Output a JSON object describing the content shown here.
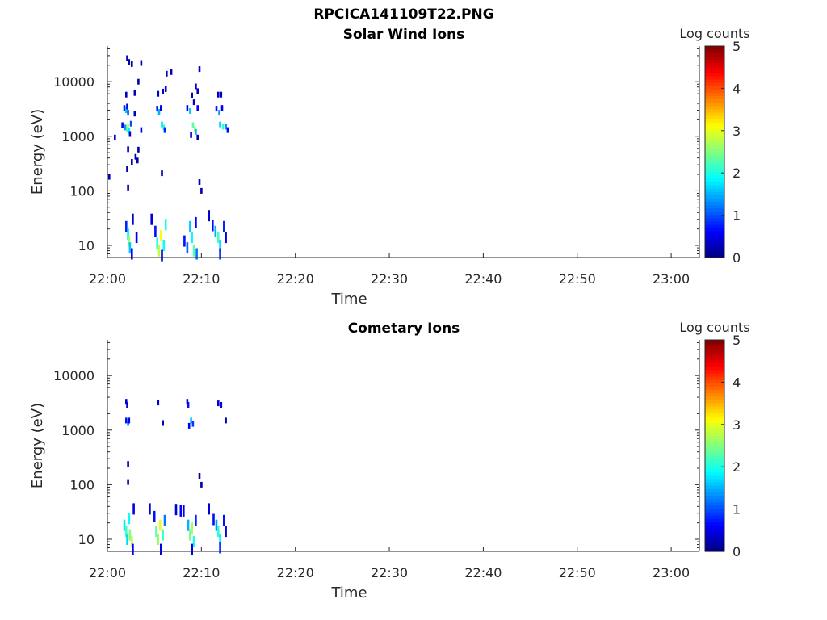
{
  "figure_title": "RPCICA141109T22.PNG",
  "chart_data": [
    {
      "type": "heatmap",
      "title": "Solar Wind Ions",
      "xlabel": "Time",
      "ylabel": "Energy (eV)",
      "x_ticks": [
        "22:00",
        "22:10",
        "22:20",
        "22:30",
        "22:40",
        "22:50",
        "23:00"
      ],
      "xlim": [
        "22:00",
        "23:03"
      ],
      "y_scale": "log",
      "y_ticks": [
        "10",
        "100",
        "1000",
        "10000"
      ],
      "ylim": [
        6,
        45000
      ],
      "colorbar": {
        "label": "Log counts",
        "ticks": [
          "0",
          "1",
          "2",
          "3",
          "4",
          "5"
        ],
        "range": [
          0,
          5
        ],
        "colormap": "jet"
      },
      "cells": [
        [
          "22:00.2",
          180,
          0.3
        ],
        [
          "22:00.8",
          950,
          0.3
        ],
        [
          "22:01.6",
          1600,
          0.5
        ],
        [
          "22:01.9",
          1450,
          1.4
        ],
        [
          "22:02.1",
          1350,
          2.2
        ],
        [
          "22:02.2",
          1500,
          2.8
        ],
        [
          "22:02.3",
          1250,
          1.8
        ],
        [
          "22:02.5",
          1700,
          1.0
        ],
        [
          "22:02.4",
          1100,
          0.4
        ],
        [
          "22:01.8",
          3300,
          0.8
        ],
        [
          "22:02.0",
          3000,
          1.6
        ],
        [
          "22:02.2",
          2700,
          1.1
        ],
        [
          "22:02.1",
          3500,
          0.5
        ],
        [
          "22:02.0",
          5800,
          0.3
        ],
        [
          "22:02.1",
          27000,
          0.3
        ],
        [
          "22:02.3",
          23000,
          0.2
        ],
        [
          "22:02.6",
          21000,
          0.2
        ],
        [
          "22:03.6",
          22000,
          0.2
        ],
        [
          "22:03.3",
          10000,
          0.2
        ],
        [
          "22:02.2",
          580,
          0.2
        ],
        [
          "22:02.1",
          250,
          0.2
        ],
        [
          "22:02.6",
          340,
          0.2
        ],
        [
          "22:02.2",
          115,
          0.2
        ],
        [
          "22:03.0",
          420,
          0.2
        ],
        [
          "22:03.3",
          570,
          0.2
        ],
        [
          "22:03.2",
          360,
          0.2
        ],
        [
          "22:02.9",
          2600,
          0.3
        ],
        [
          "22:02.9",
          6200,
          0.3
        ],
        [
          "22:03.6",
          1300,
          0.5
        ],
        [
          "22:05.3",
          3200,
          0.7
        ],
        [
          "22:05.5",
          2800,
          1.5
        ],
        [
          "22:05.7",
          3300,
          0.6
        ],
        [
          "22:05.8",
          1650,
          1.7
        ],
        [
          "22:06.0",
          1450,
          2.1
        ],
        [
          "22:06.1",
          1300,
          0.8
        ],
        [
          "22:05.4",
          6000,
          0.3
        ],
        [
          "22:05.9",
          6600,
          0.3
        ],
        [
          "22:06.2",
          7300,
          0.3
        ],
        [
          "22:06.3",
          14000,
          0.3
        ],
        [
          "22:06.8",
          15000,
          0.3
        ],
        [
          "22:05.8",
          210,
          0.2
        ],
        [
          "22:08.5",
          3300,
          0.6
        ],
        [
          "22:08.8",
          2900,
          1.6
        ],
        [
          "22:09.1",
          1600,
          2.3
        ],
        [
          "22:09.3",
          1350,
          2.6
        ],
        [
          "22:09.4",
          1200,
          1.5
        ],
        [
          "22:08.9",
          1050,
          0.4
        ],
        [
          "22:09.6",
          950,
          0.3
        ],
        [
          "22:09.0",
          5600,
          0.3
        ],
        [
          "22:09.4",
          8200,
          0.3
        ],
        [
          "22:09.6",
          6700,
          0.3
        ],
        [
          "22:09.8",
          17000,
          0.3
        ],
        [
          "22:09.2",
          4200,
          0.3
        ],
        [
          "22:09.6",
          3300,
          0.6
        ],
        [
          "22:09.8",
          145,
          0.2
        ],
        [
          "22:10.0",
          100,
          0.2
        ],
        [
          "22:11.6",
          3200,
          0.7
        ],
        [
          "22:11.9",
          2700,
          1.4
        ],
        [
          "22:12.2",
          3300,
          0.6
        ],
        [
          "22:12.0",
          1650,
          1.6
        ],
        [
          "22:12.3",
          1500,
          2.1
        ],
        [
          "22:12.6",
          1500,
          1.3
        ],
        [
          "22:12.8",
          1300,
          0.6
        ],
        [
          "22:11.8",
          5800,
          0.3
        ],
        [
          "22:12.1",
          5800,
          0.3
        ],
        [
          "22:02.0",
          22,
          0.8
        ],
        [
          "22:02.2",
          16,
          1.8
        ],
        [
          "22:02.3",
          12,
          2.6
        ],
        [
          "22:02.4",
          9,
          1.6
        ],
        [
          "22:02.6",
          7,
          0.6
        ],
        [
          "22:02.7",
          30,
          0.4
        ],
        [
          "22:03.1",
          14,
          0.5
        ],
        [
          "22:04.7",
          30,
          0.4
        ],
        [
          "22:05.1",
          18,
          0.7
        ],
        [
          "22:05.3",
          11,
          2.1
        ],
        [
          "22:05.5",
          8,
          2.8
        ],
        [
          "22:05.7",
          15,
          3.1
        ],
        [
          "22:06.0",
          10,
          1.9
        ],
        [
          "22:06.2",
          24,
          2.0
        ],
        [
          "22:05.8",
          6.5,
          0.4
        ],
        [
          "22:08.2",
          12,
          0.7
        ],
        [
          "22:08.5",
          9,
          1.1
        ],
        [
          "22:08.8",
          22,
          1.6
        ],
        [
          "22:09.0",
          14,
          1.9
        ],
        [
          "22:09.2",
          8,
          2.3
        ],
        [
          "22:09.4",
          26,
          0.6
        ],
        [
          "22:09.5",
          7,
          1.2
        ],
        [
          "22:10.8",
          35,
          0.4
        ],
        [
          "22:11.2",
          23,
          0.7
        ],
        [
          "22:11.5",
          18,
          1.5
        ],
        [
          "22:11.8",
          14,
          2.2
        ],
        [
          "22:12.0",
          10,
          1.7
        ],
        [
          "22:12.4",
          22,
          0.8
        ],
        [
          "22:12.6",
          14,
          0.5
        ],
        [
          "22:12.0",
          7,
          0.8
        ]
      ]
    },
    {
      "type": "heatmap",
      "title": "Cometary Ions",
      "xlabel": "Time",
      "ylabel": "Energy (eV)",
      "x_ticks": [
        "22:00",
        "22:10",
        "22:20",
        "22:30",
        "22:40",
        "22:50",
        "23:00"
      ],
      "xlim": [
        "22:00",
        "23:03"
      ],
      "y_scale": "log",
      "y_ticks": [
        "10",
        "100",
        "1000",
        "10000"
      ],
      "ylim": [
        6,
        45000
      ],
      "colorbar": {
        "label": "Log counts",
        "ticks": [
          "0",
          "1",
          "2",
          "3",
          "4",
          "5"
        ],
        "range": [
          0,
          5
        ],
        "colormap": "jet"
      },
      "cells": [
        [
          "22:02.0",
          3300,
          0.3
        ],
        [
          "22:02.1",
          2900,
          0.5
        ],
        [
          "22:02.0",
          1500,
          0.7
        ],
        [
          "22:02.2",
          1350,
          1.3
        ],
        [
          "22:02.3",
          1500,
          0.5
        ],
        [
          "22:02.2",
          240,
          0.2
        ],
        [
          "22:02.2",
          112,
          0.2
        ],
        [
          "22:05.4",
          3200,
          0.4
        ],
        [
          "22:05.9",
          1350,
          0.3
        ],
        [
          "22:08.5",
          3300,
          0.5
        ],
        [
          "22:08.6",
          2900,
          0.7
        ],
        [
          "22:08.9",
          1500,
          1.6
        ],
        [
          "22:09.1",
          1300,
          0.9
        ],
        [
          "22:08.7",
          1200,
          0.5
        ],
        [
          "22:09.8",
          145,
          0.2
        ],
        [
          "22:10.0",
          100,
          0.2
        ],
        [
          "22:11.8",
          3100,
          0.4
        ],
        [
          "22:12.1",
          2900,
          0.5
        ],
        [
          "22:12.6",
          1500,
          0.3
        ],
        [
          "22:01.8",
          18,
          1.8
        ],
        [
          "22:02.0",
          14,
          2.2
        ],
        [
          "22:02.1",
          10,
          1.7
        ],
        [
          "22:02.3",
          24,
          1.9
        ],
        [
          "22:02.4",
          12,
          2.5
        ],
        [
          "22:02.6",
          9,
          2.8
        ],
        [
          "22:02.8",
          36,
          0.5
        ],
        [
          "22:02.7",
          6.5,
          0.6
        ],
        [
          "22:04.5",
          36,
          0.4
        ],
        [
          "22:05.0",
          26,
          0.7
        ],
        [
          "22:05.2",
          14,
          2.3
        ],
        [
          "22:05.4",
          10,
          2.6
        ],
        [
          "22:05.6",
          18,
          3.0
        ],
        [
          "22:05.9",
          12,
          2.2
        ],
        [
          "22:06.1",
          22,
          1.2
        ],
        [
          "22:05.7",
          6.5,
          0.5
        ],
        [
          "22:07.3",
          35,
          0.4
        ],
        [
          "22:07.8",
          33,
          0.6
        ],
        [
          "22:08.1",
          33,
          0.6
        ],
        [
          "22:08.6",
          18,
          1.5
        ],
        [
          "22:08.8",
          12,
          2.4
        ],
        [
          "22:09.0",
          16,
          2.7
        ],
        [
          "22:09.2",
          9,
          2.0
        ],
        [
          "22:09.4",
          22,
          0.8
        ],
        [
          "22:09.0",
          6.5,
          0.5
        ],
        [
          "22:10.8",
          36,
          0.4
        ],
        [
          "22:11.3",
          23,
          0.7
        ],
        [
          "22:11.6",
          18,
          1.4
        ],
        [
          "22:11.8",
          14,
          2.1
        ],
        [
          "22:12.0",
          10,
          1.8
        ],
        [
          "22:12.4",
          22,
          0.7
        ],
        [
          "22:12.6",
          14,
          0.5
        ],
        [
          "22:12.0",
          7,
          0.8
        ]
      ]
    }
  ]
}
